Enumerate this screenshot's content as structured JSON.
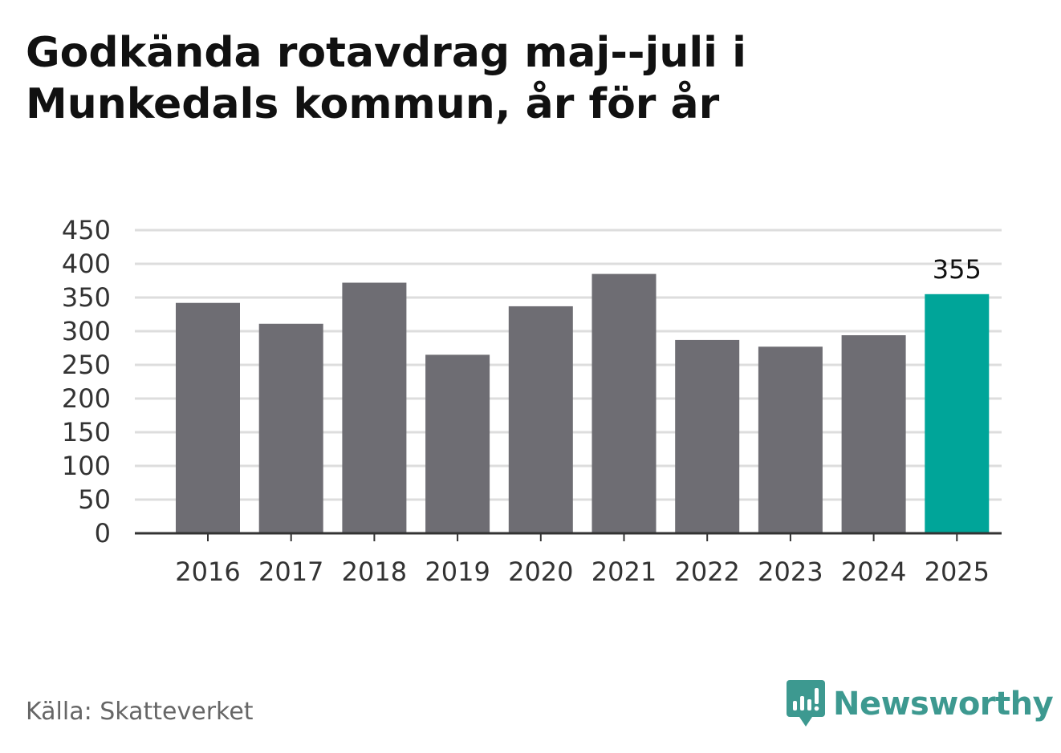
{
  "title": "Godkända rotavdrag maj--juli i Munkedals kommun, år för år",
  "source": "Källa: Skatteverket",
  "brand": {
    "name": "Newsworthy",
    "icon": "newsworthy-logo-icon",
    "color": "#3d9990"
  },
  "colors": {
    "bar": "#6e6d73",
    "highlight": "#00a599",
    "grid": "#dddddd",
    "axis": "#333333"
  },
  "chart_data": {
    "type": "bar",
    "title": "Godkända rotavdrag maj--juli i Munkedals kommun, år för år",
    "categories": [
      "2016",
      "2017",
      "2018",
      "2019",
      "2020",
      "2021",
      "2022",
      "2023",
      "2024",
      "2025"
    ],
    "values": [
      342,
      311,
      372,
      265,
      337,
      385,
      287,
      277,
      294,
      355
    ],
    "highlight_index": 9,
    "data_labels": [
      {
        "index": 9,
        "text": "355"
      }
    ],
    "yticks": [
      "0",
      "50",
      "100",
      "150",
      "200",
      "250",
      "300",
      "350",
      "400",
      "450"
    ],
    "ylim": [
      0,
      450
    ],
    "xlabel": "",
    "ylabel": "",
    "grid": true,
    "legend": "none"
  }
}
